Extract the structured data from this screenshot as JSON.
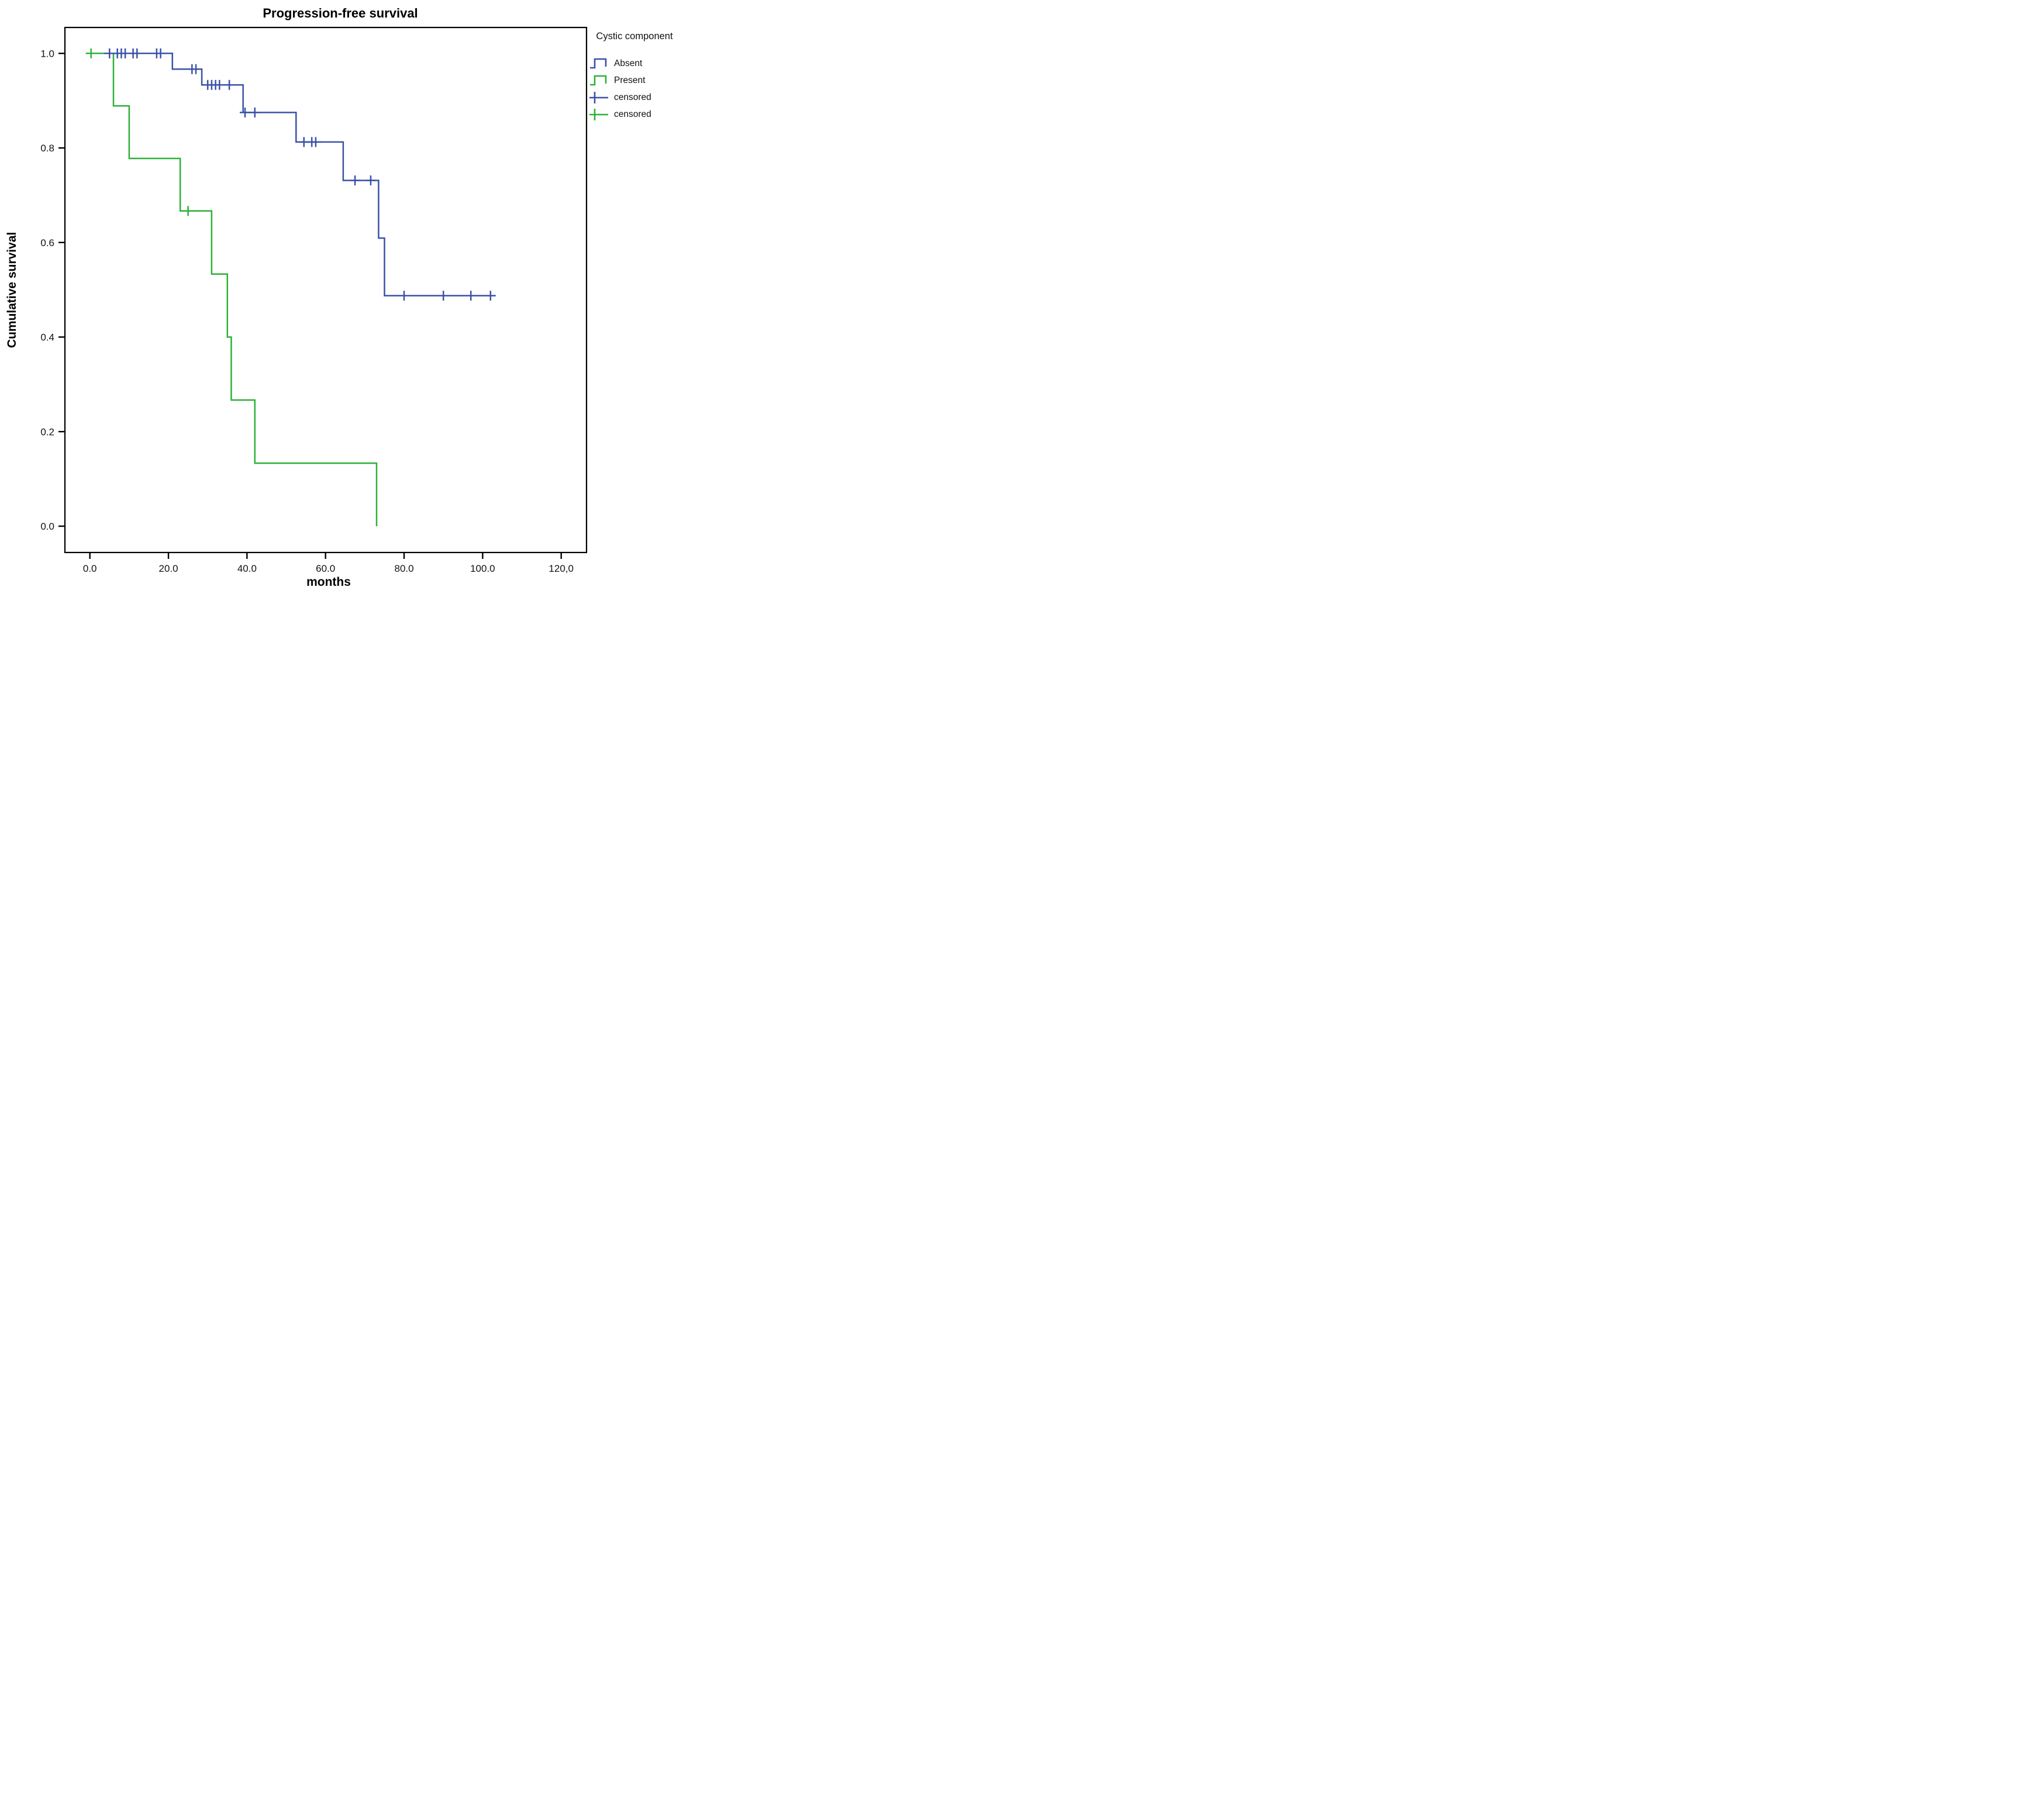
{
  "chart_data": {
    "type": "line",
    "subtype": "kaplan-meier-step-plot",
    "title": "Progression-free survival",
    "xlabel": "months",
    "ylabel": "Cumulative survival",
    "grid": false,
    "x_ticks": [
      {
        "value": 0,
        "label": "0.0"
      },
      {
        "value": 20,
        "label": "20.0"
      },
      {
        "value": 40,
        "label": "40.0"
      },
      {
        "value": 60,
        "label": "60.0"
      },
      {
        "value": 80,
        "label": "80.0"
      },
      {
        "value": 100,
        "label": "100.0"
      },
      {
        "value": 120,
        "label": "120,0"
      }
    ],
    "y_ticks": [
      {
        "value": 0.0,
        "label": "0.0"
      },
      {
        "value": 0.2,
        "label": "0.2"
      },
      {
        "value": 0.4,
        "label": "0.4"
      },
      {
        "value": 0.6,
        "label": "0.6"
      },
      {
        "value": 0.8,
        "label": "0.8"
      },
      {
        "value": 1.0,
        "label": "1.0"
      }
    ],
    "xlim": [
      -6.4,
      126.5
    ],
    "ylim": [
      -0.056,
      1.055
    ],
    "legend": {
      "title": "Cystic component",
      "position": "right",
      "items": [
        {
          "label": "Absent",
          "swatch": "step",
          "color": "#3b51a8"
        },
        {
          "label": "Present",
          "swatch": "step",
          "color": "#2cb138"
        },
        {
          "label": "censored",
          "swatch": "censored",
          "color": "#3b51a8"
        },
        {
          "label": "censored",
          "swatch": "censored",
          "color": "#2cb138"
        }
      ]
    },
    "series": [
      {
        "name": "Present",
        "group": "Cystic component: Present",
        "color": "#2cb138",
        "points": [
          [
            0,
            1.0
          ],
          [
            6,
            1.0
          ],
          [
            6,
            0.8889
          ],
          [
            10,
            0.8889
          ],
          [
            10,
            0.7778
          ],
          [
            23,
            0.7778
          ],
          [
            23,
            0.6667
          ],
          [
            31,
            0.6667
          ],
          [
            31,
            0.5333
          ],
          [
            35,
            0.5333
          ],
          [
            35,
            0.4
          ],
          [
            36,
            0.4
          ],
          [
            36,
            0.2667
          ],
          [
            42,
            0.2667
          ],
          [
            42,
            0.1333
          ],
          [
            73,
            0.1333
          ],
          [
            73,
            0.0
          ]
        ],
        "censored": [
          [
            0.3,
            1.0
          ],
          [
            25,
            0.6667
          ]
        ]
      },
      {
        "name": "Absent",
        "group": "Cystic component: Absent",
        "color": "#3b51a8",
        "points": [
          [
            4.5,
            1.0
          ],
          [
            21,
            1.0
          ],
          [
            21,
            0.9667
          ],
          [
            28.5,
            0.9667
          ],
          [
            28.5,
            0.9333
          ],
          [
            39,
            0.9333
          ],
          [
            39,
            0.875
          ],
          [
            52.5,
            0.875
          ],
          [
            52.5,
            0.8125
          ],
          [
            64.5,
            0.8125
          ],
          [
            64.5,
            0.7313
          ],
          [
            73.5,
            0.7313
          ],
          [
            73.5,
            0.6094
          ],
          [
            75,
            0.6094
          ],
          [
            75,
            0.4875
          ],
          [
            103.3,
            0.4875
          ]
        ],
        "censored": [
          [
            5,
            1.0
          ],
          [
            7,
            1.0
          ],
          [
            8,
            1.0
          ],
          [
            9,
            1.0
          ],
          [
            11,
            1.0
          ],
          [
            12,
            1.0
          ],
          [
            17,
            1.0
          ],
          [
            18,
            1.0
          ],
          [
            26,
            0.9667
          ],
          [
            27,
            0.9667
          ],
          [
            30,
            0.9333
          ],
          [
            31,
            0.9333
          ],
          [
            32,
            0.9333
          ],
          [
            33,
            0.9333
          ],
          [
            35.5,
            0.9333
          ],
          [
            39.5,
            0.875
          ],
          [
            42,
            0.875
          ],
          [
            54.5,
            0.8125
          ],
          [
            56.5,
            0.8125
          ],
          [
            57.5,
            0.8125
          ],
          [
            67.5,
            0.7313
          ],
          [
            71.5,
            0.7313
          ],
          [
            80,
            0.4875
          ],
          [
            90,
            0.4875
          ],
          [
            97,
            0.4875
          ],
          [
            102,
            0.4875
          ]
        ]
      }
    ]
  }
}
